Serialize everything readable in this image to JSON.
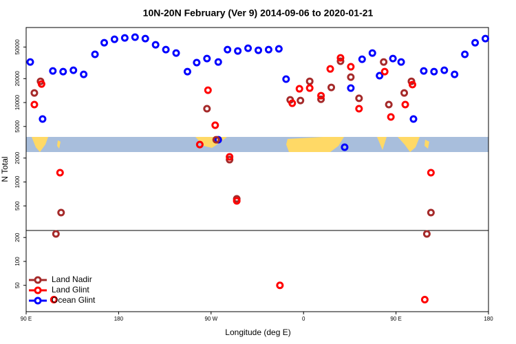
{
  "chart_data": {
    "type": "scatter",
    "title": "10N-20N February (Ver 9)   2014-09-06 to 2020-01-21",
    "x_label": "Longitude (deg E)",
    "y_label": "N Total",
    "log_y": true,
    "xlim": [
      90,
      540
    ],
    "ylim": [
      23.3,
      88000
    ],
    "xticks": [
      {
        "value": 90,
        "label": "90 E"
      },
      180,
      {
        "value": 270,
        "label": "90 W"
      },
      {
        "value": 360,
        "label": "0"
      },
      {
        "value": 450,
        "label": "90 E"
      },
      {
        "value": 540,
        "label": "180"
      }
    ],
    "yticks": [
      50,
      100,
      200,
      500,
      1000,
      2000,
      5000,
      10000,
      20000,
      50000
    ],
    "legend": "bottom-left",
    "series": [
      {
        "name": "Land Nadir",
        "color": "#a52a2a",
        "x": [
          98,
          104,
          119,
          124,
          266,
          275,
          288,
          295,
          347,
          357,
          366,
          377,
          387,
          396,
          406,
          414,
          438,
          443,
          458,
          465,
          480,
          484
        ],
        "values": [
          13200,
          18500,
          222,
          412,
          8360,
          3400,
          1910,
          614,
          10800,
          10600,
          18500,
          11000,
          15500,
          33100,
          20900,
          11300,
          32400,
          9420,
          13200,
          18500,
          222,
          412
        ]
      },
      {
        "name": "Land Glint",
        "color": "#ff0000",
        "x": [
          98,
          105,
          117,
          123,
          259,
          267,
          274,
          288,
          295,
          337,
          349,
          356,
          366,
          377,
          386,
          396,
          406,
          414,
          439,
          445,
          459,
          466,
          478,
          484
        ],
        "values": [
          9420,
          17100,
          33,
          1310,
          2960,
          14300,
          5180,
          2070,
          578,
          50,
          9800,
          14900,
          15200,
          12200,
          26500,
          36500,
          28200,
          8360,
          24500,
          6580,
          9420,
          16800,
          33,
          1310
        ]
      },
      {
        "name": "Ocean Glint",
        "color": "#0000ff",
        "x": [
          94,
          106,
          116,
          126,
          136,
          146,
          157,
          166,
          176,
          186,
          196,
          206,
          216,
          226,
          236,
          247,
          256,
          266,
          277,
          286,
          296,
          306,
          316,
          326,
          336,
          343,
          277,
          400,
          406,
          417,
          427,
          434,
          447,
          455,
          467,
          477,
          487,
          497,
          507,
          517,
          527,
          537
        ],
        "values": [
          32400,
          6200,
          25000,
          24500,
          25500,
          22600,
          40400,
          56600,
          62600,
          65100,
          66500,
          63800,
          53300,
          46400,
          42000,
          24500,
          31800,
          35800,
          32400,
          46400,
          44600,
          48300,
          45500,
          46400,
          47400,
          19700,
          3400,
          2740,
          15200,
          35100,
          42000,
          21800,
          35800,
          32400,
          6200,
          25000,
          24500,
          25500,
          22600,
          40400,
          56600,
          63800
        ]
      }
    ]
  }
}
